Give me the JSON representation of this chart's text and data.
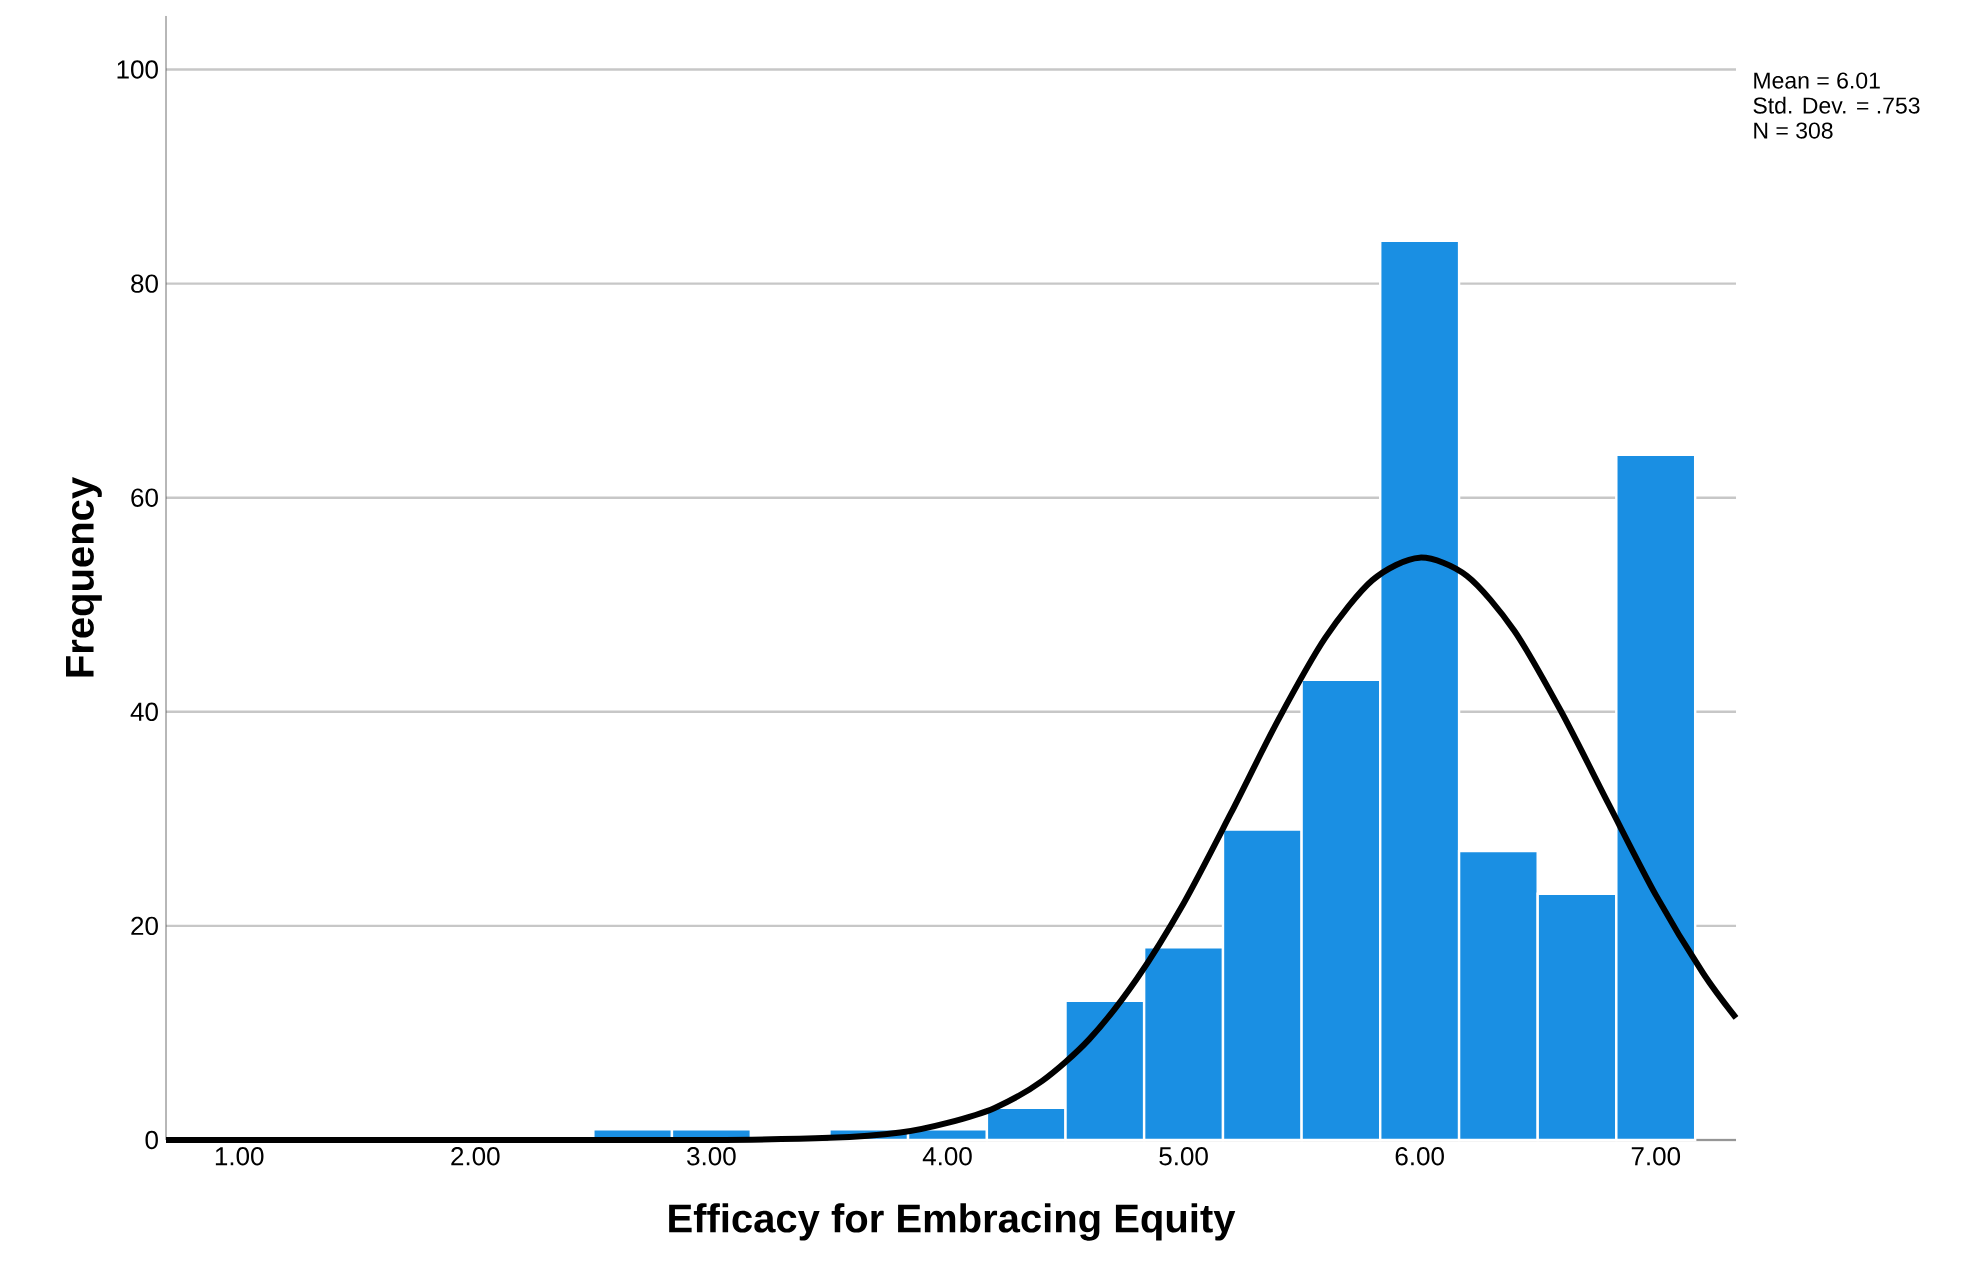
{
  "chart_data": {
    "type": "histogram",
    "xlabel": "Efficacy for Embracing Equity",
    "ylabel": "Frequency",
    "xlim": [
      0.69,
      7.34
    ],
    "ylim": [
      0,
      105
    ],
    "xticks": [
      {
        "value": 1,
        "label": "1.00"
      },
      {
        "value": 2,
        "label": "2.00"
      },
      {
        "value": 3,
        "label": "3.00"
      },
      {
        "value": 4,
        "label": "4.00"
      },
      {
        "value": 5,
        "label": "5.00"
      },
      {
        "value": 6,
        "label": "6.00"
      },
      {
        "value": 7,
        "label": "7.00"
      }
    ],
    "yticks": [
      0,
      20,
      40,
      60,
      80,
      100
    ],
    "grid": "y",
    "annotations": [
      "Mean = 6.01",
      "Std. Dev. = .753",
      "N = 308"
    ],
    "series": [
      {
        "color": "#1a8fe3",
        "bins": [
          2.5,
          2.833,
          3.167,
          3.5,
          3.833,
          4.167,
          4.5,
          4.833,
          5.167,
          5.5,
          5.833,
          6.167,
          6.5,
          6.833,
          7.167
        ],
        "values": [
          1,
          1,
          0,
          1,
          1,
          3,
          13,
          18,
          29,
          43,
          84,
          27,
          23,
          64
        ]
      },
      {
        "type": "line",
        "color": "#000000",
        "x": [
          0.69,
          2.0,
          3.0,
          3.5,
          3.8,
          4.0,
          4.2,
          4.4,
          4.6,
          4.8,
          5.0,
          5.2,
          5.4,
          5.6,
          5.8,
          6.0,
          6.2,
          6.4,
          6.6,
          6.8,
          7.0,
          7.2,
          7.34
        ],
        "values": [
          0,
          0,
          0,
          0.2,
          0.7,
          1.6,
          3.0,
          5.5,
          9.4,
          15.0,
          22.1,
          30.5,
          39.2,
          46.9,
          52.3,
          54.4,
          52.7,
          47.6,
          40.0,
          31.4,
          22.9,
          15.6,
          11.4
        ]
      }
    ]
  }
}
